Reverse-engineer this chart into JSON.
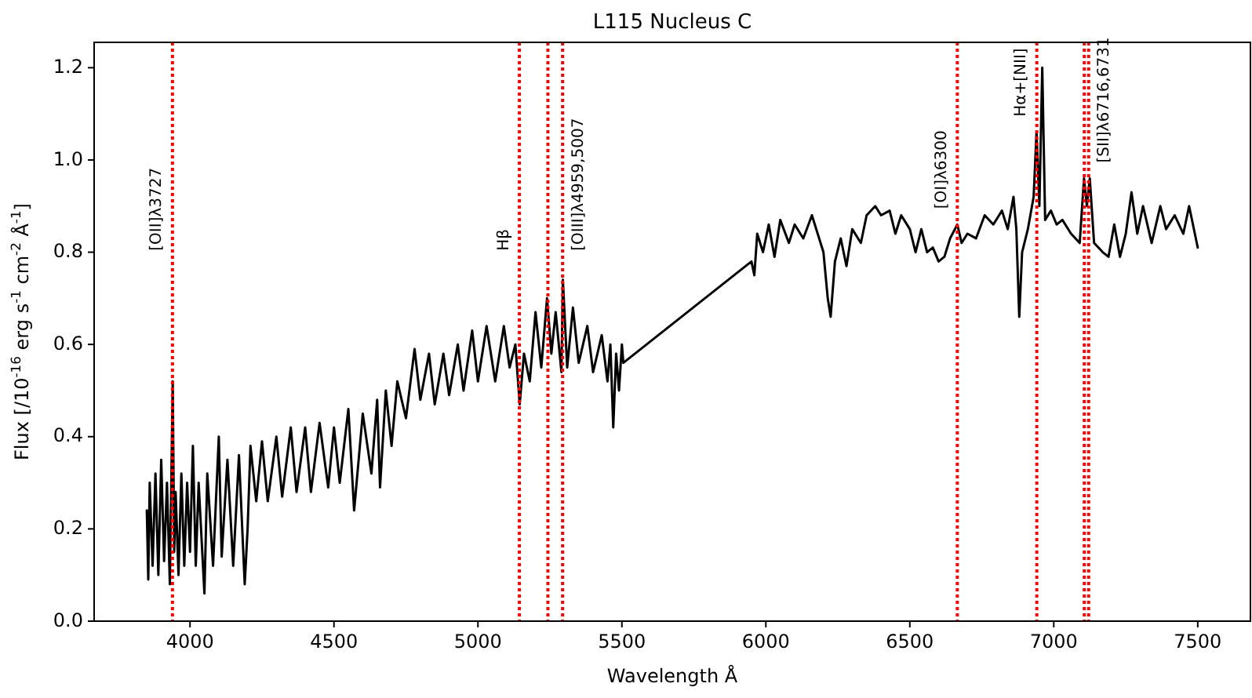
{
  "chart_data": {
    "type": "line",
    "title": "L115 Nucleus C",
    "xlabel": "Wavelength Å",
    "ylabel": "Flux  [/10$^{-16}$ erg s$^{-1}$ cm$^{-2}$ Å$^{-1}$]",
    "xlim": [
      3667,
      7683
    ],
    "ylim": [
      0,
      1.255
    ],
    "xticks": [
      4000,
      4500,
      5000,
      5500,
      6000,
      6500,
      7000,
      7500
    ],
    "yticks": [
      {
        "value": 0,
        "label": "0.0"
      },
      {
        "value": 0.2,
        "label": "0.2"
      },
      {
        "value": 0.4,
        "label": "0.4"
      },
      {
        "value": 0.6,
        "label": "0.6"
      },
      {
        "value": 0.8,
        "label": "0.8"
      },
      {
        "value": 1,
        "label": "1.0"
      },
      {
        "value": 1.2,
        "label": "1.2"
      }
    ],
    "grid": false,
    "marker": "none",
    "line_style": "solid",
    "series": [
      {
        "color": "#000000",
        "x": [
          3850,
          3855,
          3860,
          3870,
          3880,
          3890,
          3900,
          3910,
          3920,
          3930,
          3940,
          3945,
          3950,
          3960,
          3970,
          3980,
          3990,
          4000,
          4010,
          4020,
          4030,
          4050,
          4060,
          4080,
          4100,
          4110,
          4130,
          4150,
          4170,
          4190,
          4200,
          4210,
          4230,
          4250,
          4270,
          4300,
          4320,
          4350,
          4370,
          4400,
          4420,
          4450,
          4480,
          4500,
          4520,
          4550,
          4570,
          4600,
          4630,
          4650,
          4660,
          4680,
          4700,
          4720,
          4750,
          4780,
          4800,
          4830,
          4850,
          4880,
          4900,
          4930,
          4950,
          4980,
          5000,
          5030,
          5060,
          5090,
          5110,
          5130,
          5145,
          5160,
          5180,
          5200,
          5220,
          5240,
          5255,
          5270,
          5290,
          5295,
          5310,
          5330,
          5350,
          5380,
          5400,
          5430,
          5450,
          5460,
          5470,
          5480,
          5490,
          5500,
          5505,
          5950,
          5960,
          5970,
          5990,
          6010,
          6030,
          6050,
          6080,
          6100,
          6130,
          6160,
          6180,
          6200,
          6215,
          6225,
          6240,
          6260,
          6280,
          6300,
          6330,
          6350,
          6380,
          6400,
          6430,
          6450,
          6470,
          6500,
          6520,
          6540,
          6560,
          6580,
          6600,
          6620,
          6640,
          6665,
          6680,
          6700,
          6730,
          6760,
          6790,
          6820,
          6840,
          6860,
          6870,
          6880,
          6890,
          6910,
          6930,
          6940,
          6950,
          6960,
          6970,
          6990,
          7010,
          7030,
          7060,
          7090,
          7105,
          7115,
          7125,
          7140,
          7170,
          7190,
          7210,
          7230,
          7250,
          7270,
          7290,
          7310,
          7340,
          7370,
          7390,
          7420,
          7450,
          7470,
          7490,
          7500
        ],
        "values": [
          0.24,
          0.09,
          0.3,
          0.12,
          0.32,
          0.1,
          0.35,
          0.13,
          0.3,
          0.08,
          0.52,
          0.15,
          0.28,
          0.1,
          0.32,
          0.12,
          0.3,
          0.15,
          0.38,
          0.12,
          0.3,
          0.06,
          0.32,
          0.12,
          0.4,
          0.14,
          0.35,
          0.12,
          0.36,
          0.08,
          0.2,
          0.38,
          0.26,
          0.39,
          0.26,
          0.4,
          0.27,
          0.42,
          0.28,
          0.42,
          0.28,
          0.43,
          0.29,
          0.42,
          0.3,
          0.46,
          0.24,
          0.45,
          0.32,
          0.48,
          0.29,
          0.5,
          0.38,
          0.52,
          0.44,
          0.59,
          0.48,
          0.58,
          0.47,
          0.58,
          0.49,
          0.6,
          0.5,
          0.63,
          0.52,
          0.64,
          0.52,
          0.64,
          0.55,
          0.6,
          0.47,
          0.58,
          0.52,
          0.67,
          0.55,
          0.7,
          0.58,
          0.67,
          0.54,
          0.74,
          0.55,
          0.68,
          0.56,
          0.64,
          0.54,
          0.62,
          0.52,
          0.6,
          0.42,
          0.58,
          0.5,
          0.6,
          0.56,
          0.78,
          0.75,
          0.84,
          0.8,
          0.86,
          0.79,
          0.87,
          0.82,
          0.86,
          0.83,
          0.88,
          0.84,
          0.8,
          0.7,
          0.66,
          0.78,
          0.83,
          0.77,
          0.85,
          0.82,
          0.88,
          0.9,
          0.88,
          0.89,
          0.84,
          0.88,
          0.85,
          0.8,
          0.85,
          0.8,
          0.81,
          0.78,
          0.79,
          0.83,
          0.86,
          0.82,
          0.84,
          0.83,
          0.88,
          0.86,
          0.89,
          0.85,
          0.92,
          0.85,
          0.66,
          0.8,
          0.85,
          0.92,
          1.06,
          0.9,
          1.2,
          0.87,
          0.89,
          0.86,
          0.87,
          0.84,
          0.82,
          0.96,
          0.9,
          0.96,
          0.82,
          0.8,
          0.79,
          0.86,
          0.79,
          0.84,
          0.93,
          0.84,
          0.9,
          0.82,
          0.9,
          0.85,
          0.88,
          0.84,
          0.9,
          0.84,
          0.81
        ]
      }
    ],
    "ref_lines": [
      {
        "axis": "x",
        "value": 3939,
        "label": "[OII]λ3727",
        "color": "#ff0000",
        "line_style": "dotted"
      },
      {
        "axis": "x",
        "value": 5144,
        "label": "Hβ",
        "color": "#ff0000",
        "line_style": "dotted"
      },
      {
        "axis": "x",
        "value": 5243,
        "color": "#ff0000",
        "line_style": "dotted"
      },
      {
        "axis": "x",
        "value": 5294,
        "label": "[OIII]λ4959,5007",
        "color": "#ff0000",
        "line_style": "dotted"
      },
      {
        "axis": "x",
        "value": 6665,
        "label": "[OI]λ6300",
        "color": "#ff0000",
        "line_style": "dotted"
      },
      {
        "axis": "x",
        "value": 6941,
        "label": "Hα+[NII]",
        "color": "#ff0000",
        "line_style": "dotted"
      },
      {
        "axis": "x",
        "value": 7106,
        "color": "#ff0000",
        "line_style": "dotted"
      },
      {
        "axis": "x",
        "value": 7121,
        "label": "[SII]λ6716,6731",
        "color": "#ff0000",
        "line_style": "dotted"
      }
    ]
  }
}
